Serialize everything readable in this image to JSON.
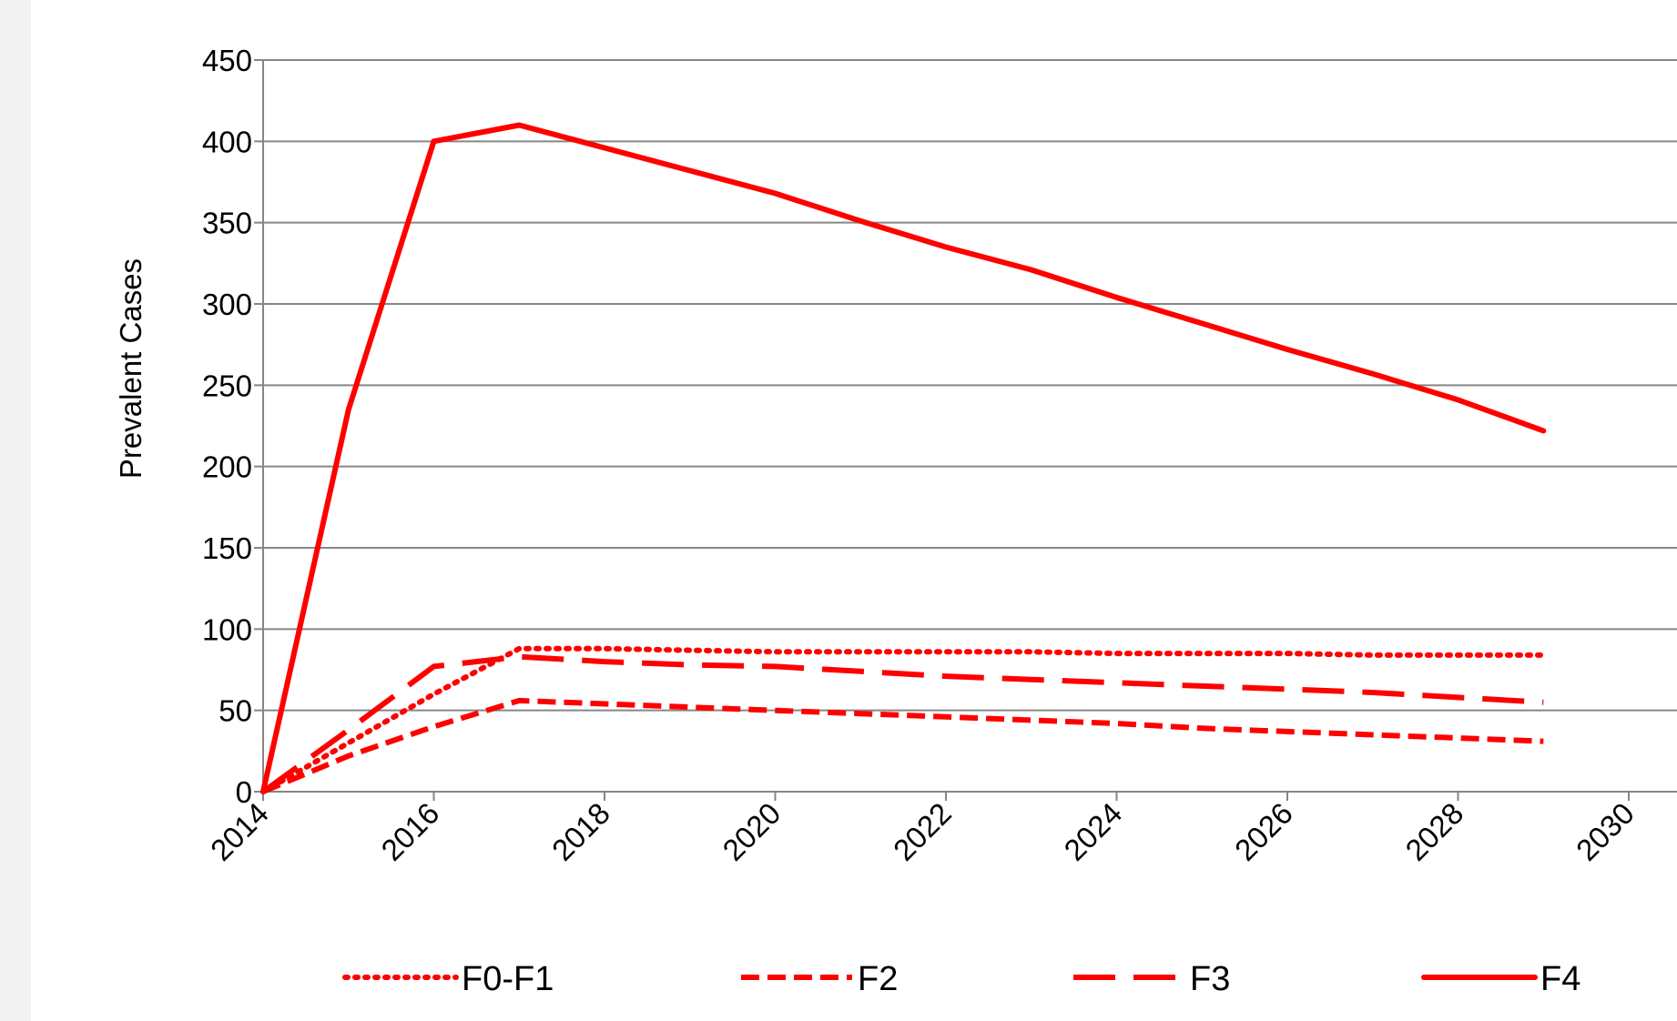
{
  "chart_data": {
    "type": "line",
    "title": "",
    "xlabel": "",
    "ylabel": "Prevalent  Cases",
    "x": [
      2014,
      2015,
      2016,
      2017,
      2018,
      2019,
      2020,
      2021,
      2022,
      2023,
      2024,
      2025,
      2026,
      2027,
      2028,
      2029
    ],
    "x_ticks": [
      "2014",
      "2016",
      "2018",
      "2020",
      "2022",
      "2024",
      "2026",
      "2028",
      "2030"
    ],
    "x_tick_values": [
      2014,
      2016,
      2018,
      2020,
      2022,
      2024,
      2026,
      2028,
      2030
    ],
    "y_ticks": [
      "0",
      "50",
      "100",
      "150",
      "200",
      "250",
      "300",
      "350",
      "400",
      "450"
    ],
    "ylim": [
      0,
      450
    ],
    "xlim": [
      2014,
      2030
    ],
    "grid": "horizontal",
    "legend_position": "bottom",
    "color": "#ff0000",
    "series": [
      {
        "name": "F0-F1",
        "style": "dotted",
        "values": [
          0,
          30,
          60,
          88,
          88,
          87,
          86,
          86,
          86,
          86,
          85,
          85,
          85,
          84,
          84,
          84
        ]
      },
      {
        "name": "F2",
        "style": "dashed",
        "values": [
          0,
          22,
          40,
          56,
          54,
          52,
          50,
          48,
          46,
          44,
          42,
          39,
          37,
          35,
          33,
          31
        ]
      },
      {
        "name": "F3",
        "style": "long-dashed",
        "values": [
          0,
          38,
          77,
          83,
          80,
          78,
          77,
          74,
          71,
          69,
          67,
          65,
          63,
          61,
          58,
          55
        ]
      },
      {
        "name": "F4",
        "style": "solid",
        "values": [
          0,
          235,
          400,
          410,
          396,
          382,
          368,
          351,
          335,
          321,
          304,
          288,
          272,
          257,
          241,
          222
        ]
      }
    ]
  }
}
